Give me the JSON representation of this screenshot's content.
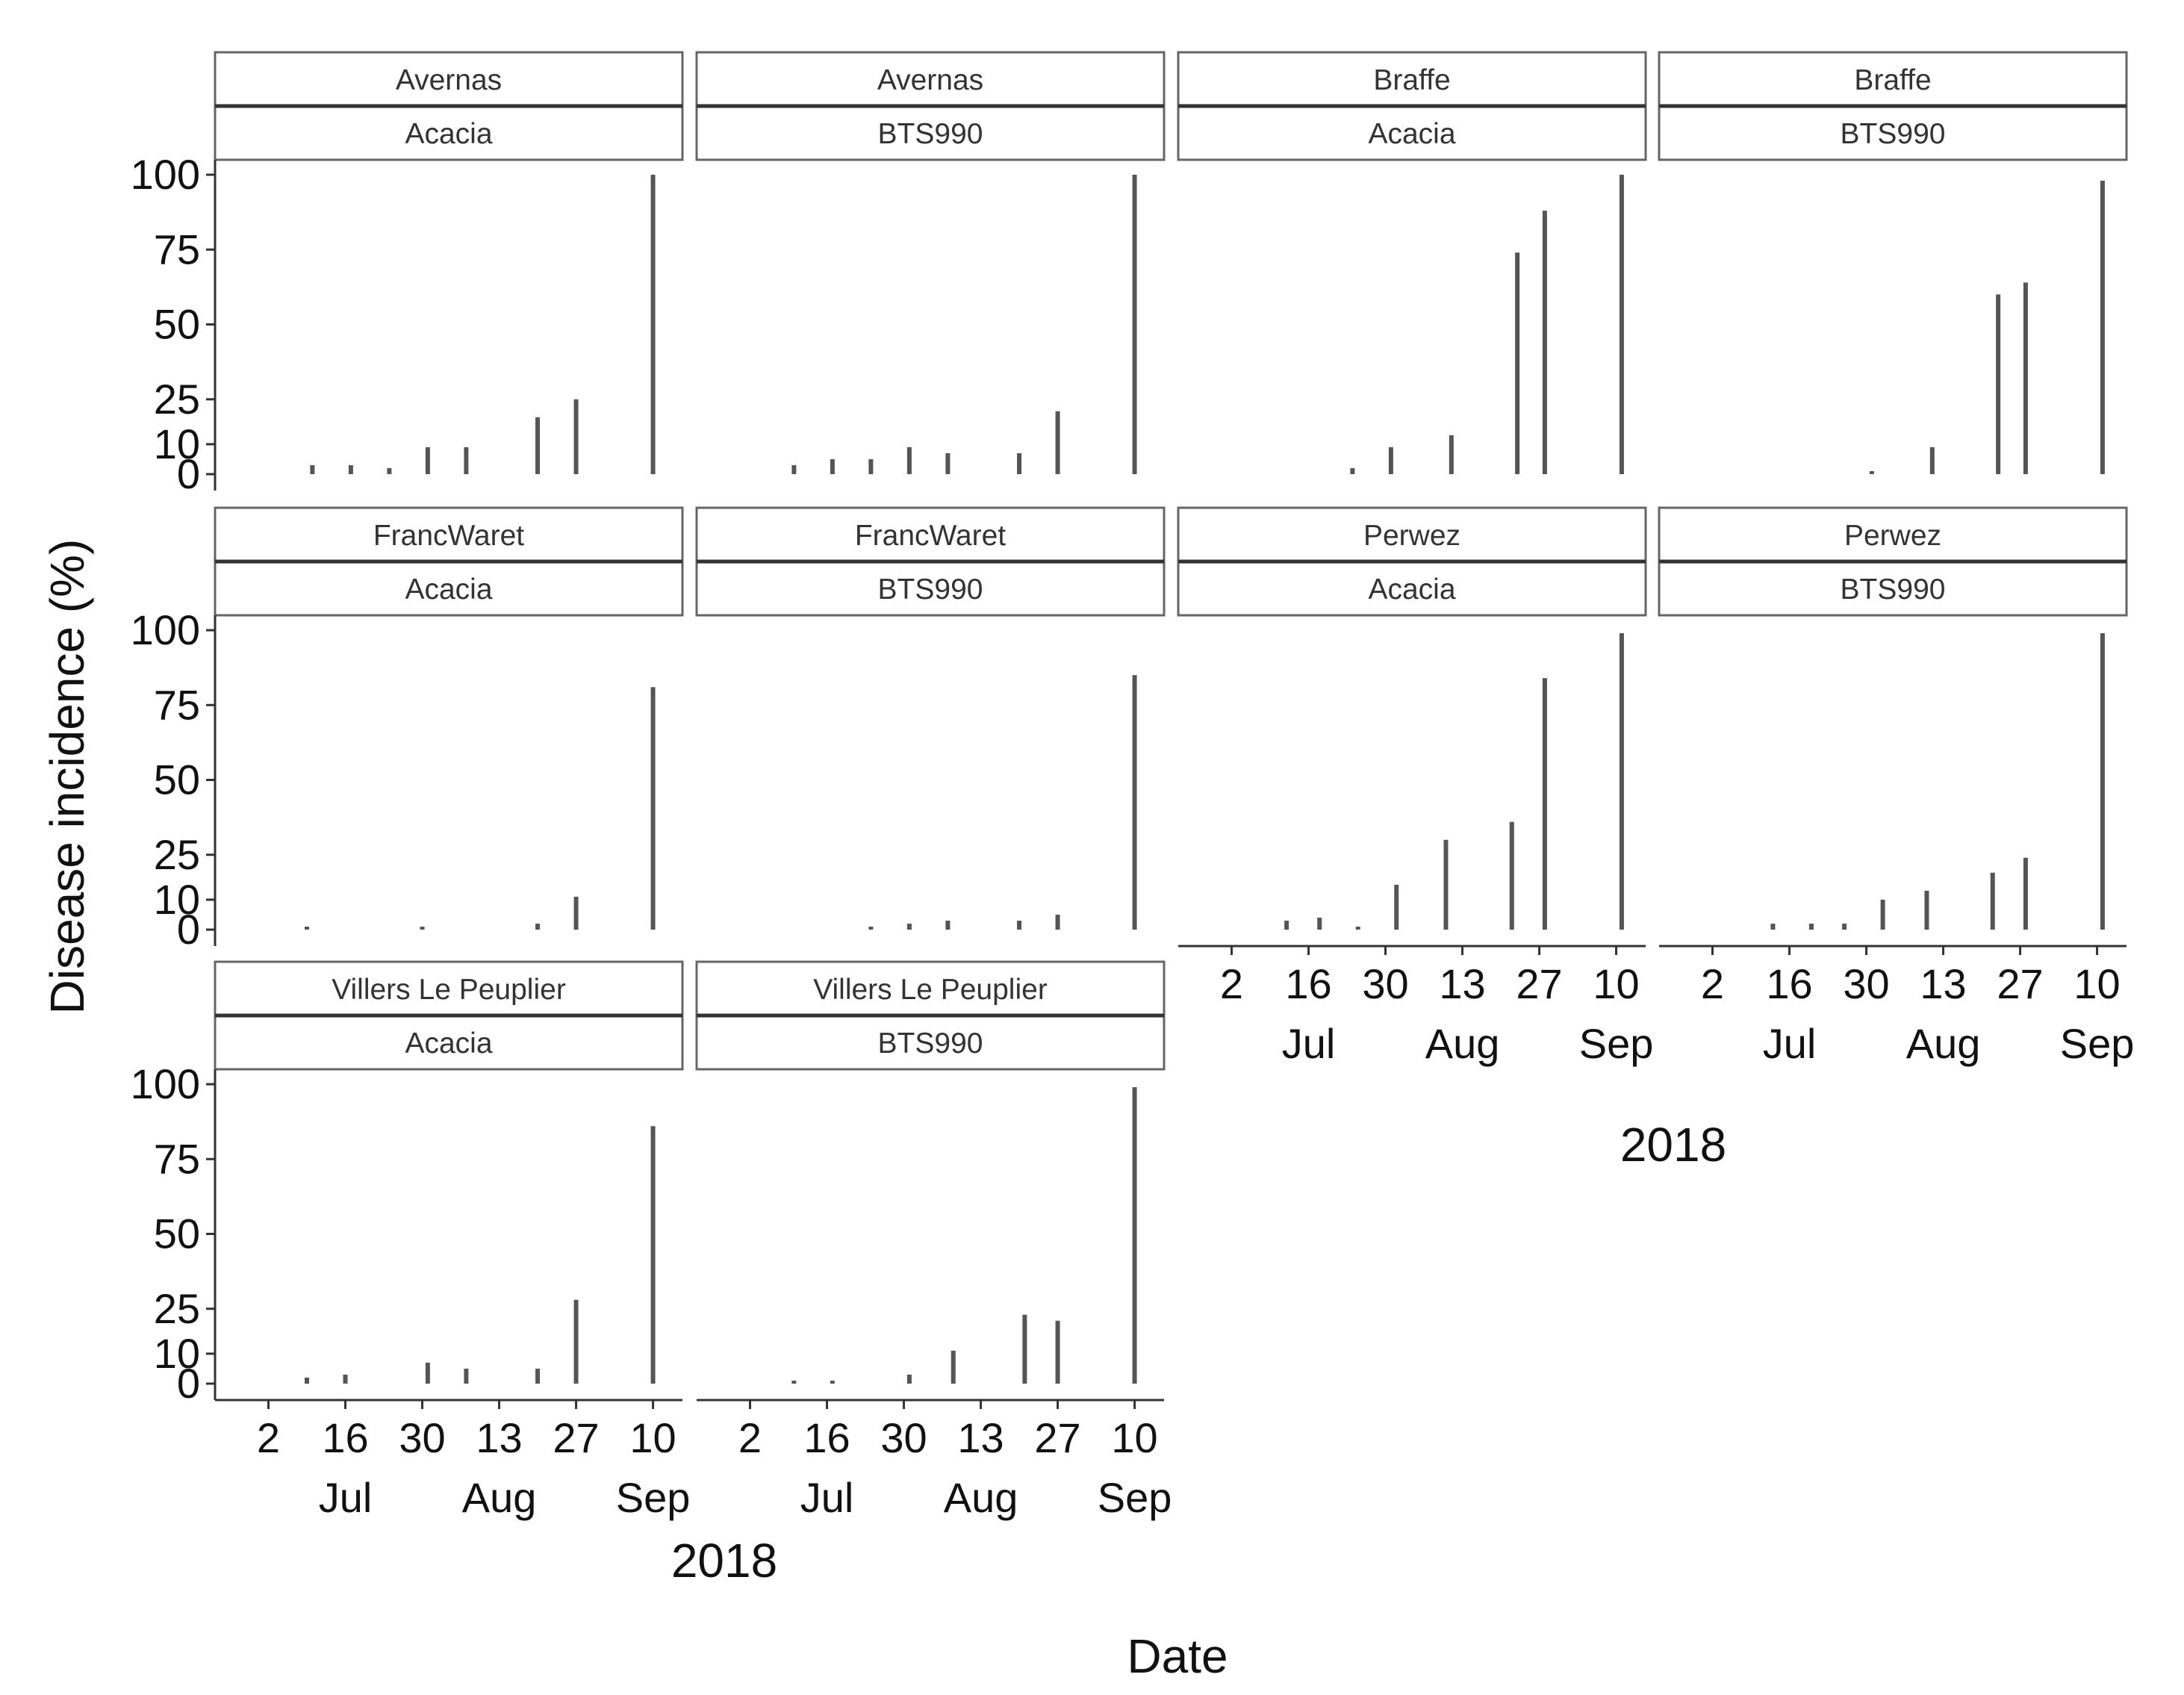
{
  "chart_data": {
    "type": "bar",
    "layout": "faceted 3x4 grid, two-row strips (site over variety), free x axis per column",
    "ylabel": "Disease incidence (%)",
    "xlabel": "Date",
    "year_label": "2018",
    "y_ticks": [
      0,
      10,
      25,
      50,
      75,
      100
    ],
    "ylim": [
      0,
      100
    ],
    "x_axis_unit": "day of year 2018",
    "xlim": [
      176,
      257
    ],
    "x_ticks": [
      {
        "doy": 183,
        "day": "2",
        "month": ""
      },
      {
        "doy": 197,
        "day": "16",
        "month": "Jul"
      },
      {
        "doy": 211,
        "day": "30",
        "month": ""
      },
      {
        "doy": 225,
        "day": "13",
        "month": "Aug"
      },
      {
        "doy": 239,
        "day": "27",
        "month": ""
      },
      {
        "doy": 253,
        "day": "10",
        "month": "Sep"
      }
    ],
    "grid": false,
    "legend": "none",
    "bar_color": "#555555",
    "panels": [
      {
        "site": "Avernas",
        "variety": "Acacia",
        "row": 0,
        "col": 0,
        "show_x_axis": false,
        "points": [
          {
            "doy": 191,
            "value": 3
          },
          {
            "doy": 198,
            "value": 3
          },
          {
            "doy": 205,
            "value": 2
          },
          {
            "doy": 212,
            "value": 9
          },
          {
            "doy": 219,
            "value": 9
          },
          {
            "doy": 232,
            "value": 19
          },
          {
            "doy": 239,
            "value": 25
          },
          {
            "doy": 253,
            "value": 100
          }
        ]
      },
      {
        "site": "Avernas",
        "variety": "BTS990",
        "row": 0,
        "col": 1,
        "show_x_axis": false,
        "points": [
          {
            "doy": 191,
            "value": 3
          },
          {
            "doy": 198,
            "value": 5
          },
          {
            "doy": 205,
            "value": 5
          },
          {
            "doy": 212,
            "value": 9
          },
          {
            "doy": 219,
            "value": 7
          },
          {
            "doy": 232,
            "value": 7
          },
          {
            "doy": 239,
            "value": 21
          },
          {
            "doy": 253,
            "value": 100
          }
        ]
      },
      {
        "site": "Braffe",
        "variety": "Acacia",
        "row": 0,
        "col": 2,
        "show_x_axis": false,
        "points": [
          {
            "doy": 205,
            "value": 2
          },
          {
            "doy": 212,
            "value": 9
          },
          {
            "doy": 223,
            "value": 13
          },
          {
            "doy": 235,
            "value": 74
          },
          {
            "doy": 240,
            "value": 88
          },
          {
            "doy": 254,
            "value": 100
          }
        ]
      },
      {
        "site": "Braffe",
        "variety": "BTS990",
        "row": 0,
        "col": 3,
        "show_x_axis": false,
        "points": [
          {
            "doy": 212,
            "value": 1
          },
          {
            "doy": 223,
            "value": 9
          },
          {
            "doy": 235,
            "value": 60
          },
          {
            "doy": 240,
            "value": 64
          },
          {
            "doy": 254,
            "value": 98
          }
        ]
      },
      {
        "site": "FrancWaret",
        "variety": "Acacia",
        "row": 1,
        "col": 0,
        "show_x_axis": false,
        "points": [
          {
            "doy": 190,
            "value": 1
          },
          {
            "doy": 211,
            "value": 1
          },
          {
            "doy": 232,
            "value": 2
          },
          {
            "doy": 239,
            "value": 11
          },
          {
            "doy": 253,
            "value": 81
          }
        ]
      },
      {
        "site": "FrancWaret",
        "variety": "BTS990",
        "row": 1,
        "col": 1,
        "show_x_axis": false,
        "points": [
          {
            "doy": 205,
            "value": 1
          },
          {
            "doy": 212,
            "value": 2
          },
          {
            "doy": 219,
            "value": 3
          },
          {
            "doy": 232,
            "value": 3
          },
          {
            "doy": 239,
            "value": 5
          },
          {
            "doy": 253,
            "value": 85
          }
        ]
      },
      {
        "site": "Perwez",
        "variety": "Acacia",
        "row": 1,
        "col": 2,
        "show_x_axis": true,
        "points": [
          {
            "doy": 193,
            "value": 3
          },
          {
            "doy": 199,
            "value": 4
          },
          {
            "doy": 206,
            "value": 1
          },
          {
            "doy": 213,
            "value": 15
          },
          {
            "doy": 222,
            "value": 30
          },
          {
            "doy": 234,
            "value": 36
          },
          {
            "doy": 240,
            "value": 84
          },
          {
            "doy": 254,
            "value": 99
          }
        ]
      },
      {
        "site": "Perwez",
        "variety": "BTS990",
        "row": 1,
        "col": 3,
        "show_x_axis": true,
        "points": [
          {
            "doy": 194,
            "value": 2
          },
          {
            "doy": 201,
            "value": 2
          },
          {
            "doy": 207,
            "value": 2
          },
          {
            "doy": 214,
            "value": 10
          },
          {
            "doy": 222,
            "value": 13
          },
          {
            "doy": 234,
            "value": 19
          },
          {
            "doy": 240,
            "value": 24
          },
          {
            "doy": 254,
            "value": 99
          }
        ]
      },
      {
        "site": "Villers Le Peuplier",
        "variety": "Acacia",
        "row": 2,
        "col": 0,
        "show_x_axis": true,
        "points": [
          {
            "doy": 190,
            "value": 2
          },
          {
            "doy": 197,
            "value": 3
          },
          {
            "doy": 212,
            "value": 7
          },
          {
            "doy": 219,
            "value": 5
          },
          {
            "doy": 232,
            "value": 5
          },
          {
            "doy": 239,
            "value": 28
          },
          {
            "doy": 253,
            "value": 86
          }
        ]
      },
      {
        "site": "Villers Le Peuplier",
        "variety": "BTS990",
        "row": 2,
        "col": 1,
        "show_x_axis": true,
        "points": [
          {
            "doy": 191,
            "value": 1
          },
          {
            "doy": 198,
            "value": 1
          },
          {
            "doy": 212,
            "value": 3
          },
          {
            "doy": 220,
            "value": 11
          },
          {
            "doy": 233,
            "value": 23
          },
          {
            "doy": 239,
            "value": 21
          },
          {
            "doy": 253,
            "value": 99
          }
        ]
      }
    ]
  }
}
